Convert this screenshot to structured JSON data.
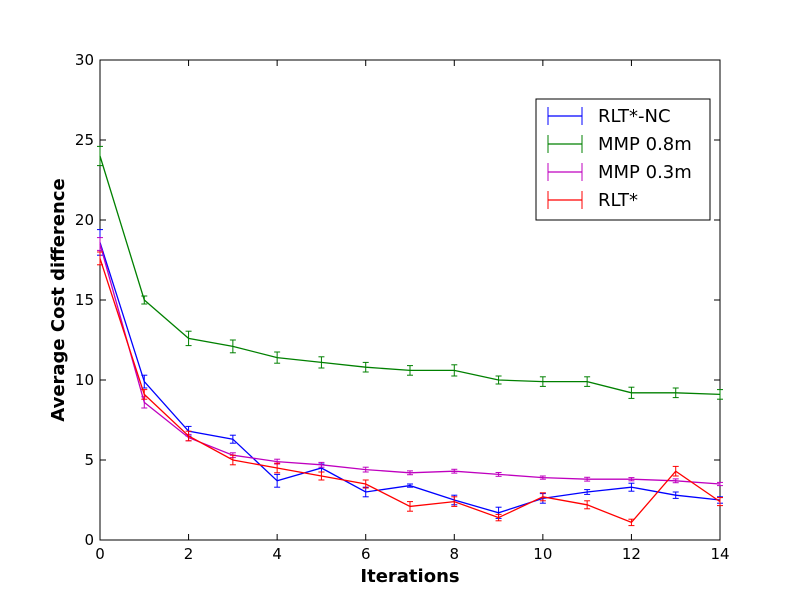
{
  "chart_data": {
    "type": "line",
    "title": "",
    "xlabel": "Iterations",
    "ylabel": "Average Cost difference",
    "xlim": [
      0,
      14
    ],
    "ylim": [
      0,
      30
    ],
    "xticks": [
      "0",
      "2",
      "4",
      "6",
      "8",
      "10",
      "12",
      "14"
    ],
    "yticks": [
      "0",
      "5",
      "10",
      "15",
      "20",
      "25",
      "30"
    ],
    "grid": false,
    "legend_position": "top-right",
    "x": [
      0,
      1,
      2,
      3,
      4,
      5,
      6,
      7,
      8,
      9,
      10,
      11,
      12,
      13,
      14
    ],
    "series": [
      {
        "name": "RLT*-NC",
        "color": "#0000ff",
        "values": [
          18.6,
          9.9,
          6.8,
          6.3,
          3.7,
          4.5,
          3.0,
          3.4,
          2.5,
          1.7,
          2.6,
          3.0,
          3.3,
          2.8,
          2.5
        ],
        "errors": [
          0.8,
          0.4,
          0.3,
          0.25,
          0.4,
          0.25,
          0.3,
          0.1,
          0.3,
          0.35,
          0.3,
          0.15,
          0.25,
          0.2,
          0.2
        ]
      },
      {
        "name": "MMP 0.8m",
        "color": "#008000",
        "values": [
          24.0,
          15.0,
          12.6,
          12.1,
          11.4,
          11.1,
          10.8,
          10.6,
          10.6,
          10.0,
          9.9,
          9.9,
          9.2,
          9.2,
          9.1
        ],
        "errors": [
          0.6,
          0.25,
          0.45,
          0.4,
          0.35,
          0.35,
          0.3,
          0.3,
          0.35,
          0.25,
          0.3,
          0.3,
          0.35,
          0.3,
          0.3
        ]
      },
      {
        "name": "MMP 0.3m",
        "color": "#bf00bf",
        "values": [
          18.5,
          8.6,
          6.4,
          5.3,
          4.9,
          4.7,
          4.4,
          4.2,
          4.3,
          4.1,
          3.9,
          3.8,
          3.8,
          3.7,
          3.5
        ],
        "errors": [
          0.4,
          0.35,
          0.2,
          0.15,
          0.15,
          0.15,
          0.15,
          0.12,
          0.12,
          0.12,
          0.1,
          0.12,
          0.1,
          0.12,
          0.1
        ]
      },
      {
        "name": "RLT*",
        "color": "#ff0000",
        "values": [
          17.6,
          9.1,
          6.5,
          5.0,
          4.5,
          4.0,
          3.5,
          2.1,
          2.4,
          1.4,
          2.7,
          2.2,
          1.1,
          4.3,
          2.4
        ],
        "errors": [
          0.4,
          0.3,
          0.3,
          0.3,
          0.3,
          0.25,
          0.25,
          0.3,
          0.3,
          0.2,
          0.25,
          0.25,
          0.2,
          0.3,
          0.25
        ]
      }
    ]
  }
}
